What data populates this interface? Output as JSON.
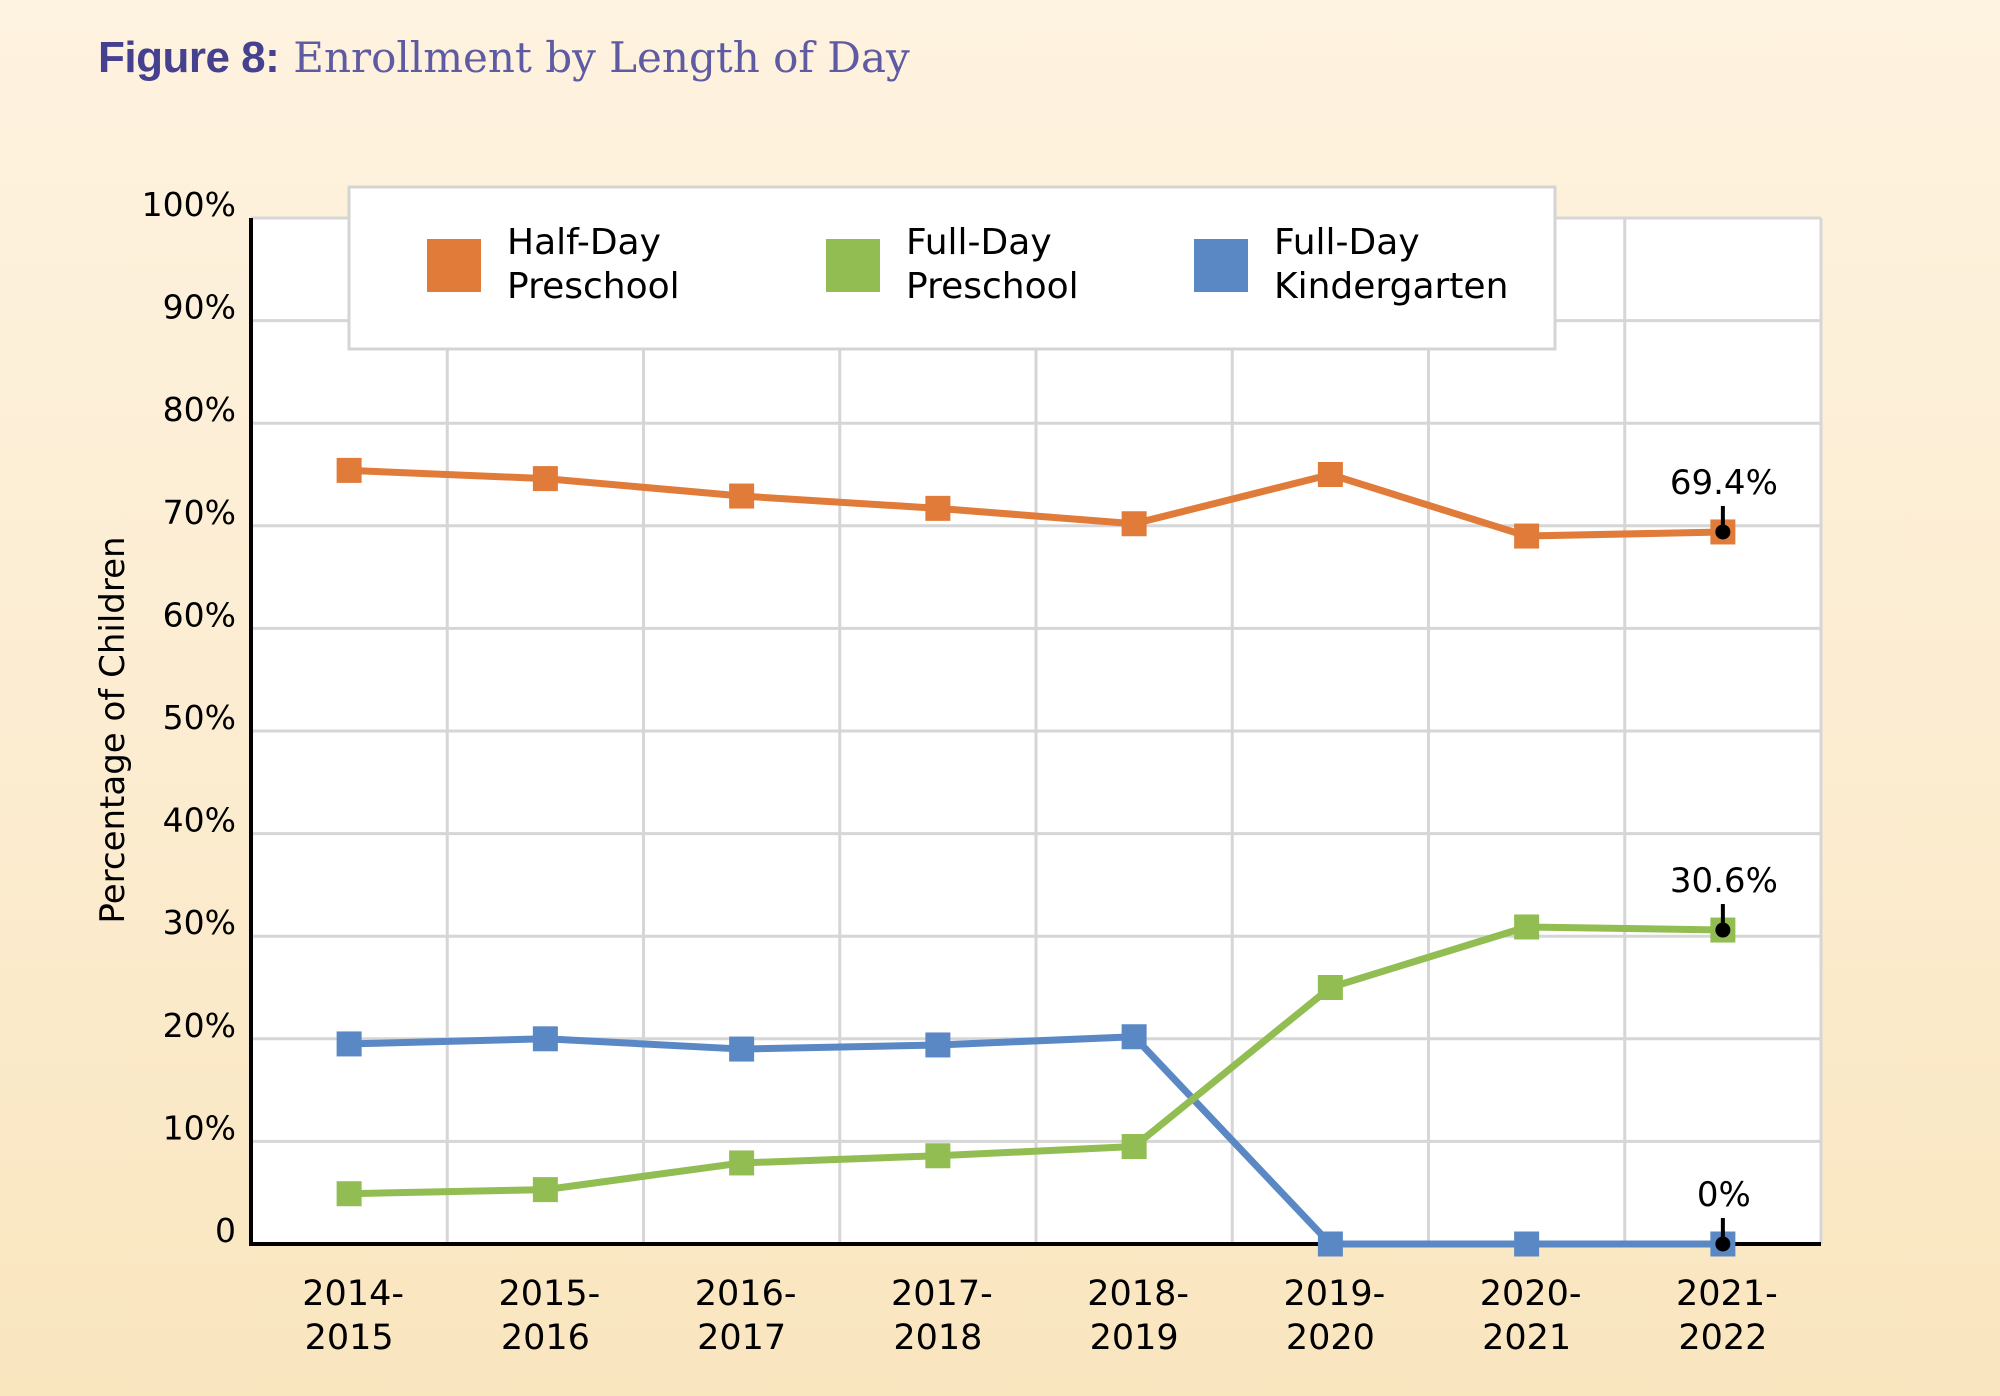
{
  "title": {
    "prefix": "Figure 8:",
    "text": "Enrollment by Length of Day"
  },
  "chart_data": {
    "type": "line",
    "title": "Figure 8: Enrollment by Length of Day",
    "xlabel": "",
    "ylabel": "Percentage of Children",
    "ylim": [
      0,
      100
    ],
    "y_ticks": [
      {
        "value": 0,
        "label": "0"
      },
      {
        "value": 10,
        "label": "10%"
      },
      {
        "value": 20,
        "label": "20%"
      },
      {
        "value": 30,
        "label": "30%"
      },
      {
        "value": 40,
        "label": "40%"
      },
      {
        "value": 50,
        "label": "50%"
      },
      {
        "value": 60,
        "label": "60%"
      },
      {
        "value": 70,
        "label": "70%"
      },
      {
        "value": 80,
        "label": "80%"
      },
      {
        "value": 90,
        "label": "90%"
      },
      {
        "value": 100,
        "label": "100%"
      }
    ],
    "categories": [
      [
        "2014-",
        "2015"
      ],
      [
        "2015-",
        "2016"
      ],
      [
        "2016-",
        "2017"
      ],
      [
        "2017-",
        "2018"
      ],
      [
        "2018-",
        "2019"
      ],
      [
        "2019-",
        "2020"
      ],
      [
        "2020-",
        "2021"
      ],
      [
        "2021-",
        "2022"
      ]
    ],
    "grid": true,
    "legend_position": "top",
    "series": [
      {
        "name": "Half-Day Preschool",
        "legend_lines": [
          "Half-Day",
          "Preschool"
        ],
        "color": "#e07b39",
        "values": [
          75.4,
          74.6,
          72.9,
          71.7,
          70.2,
          75.0,
          69.0,
          69.4
        ],
        "annotation": {
          "index": 7,
          "label": "69.4%"
        }
      },
      {
        "name": "Full-Day Preschool",
        "legend_lines": [
          "Full-Day",
          "Preschool"
        ],
        "color": "#92bd52",
        "values": [
          4.9,
          5.3,
          7.9,
          8.6,
          9.5,
          25.0,
          30.9,
          30.6
        ],
        "annotation": {
          "index": 7,
          "label": "30.6%"
        }
      },
      {
        "name": "Full-Day Kindergarten",
        "legend_lines": [
          "Full-Day",
          "Kindergarten"
        ],
        "color": "#5a88c4",
        "values": [
          19.5,
          20.0,
          19.0,
          19.4,
          20.2,
          0,
          0,
          0
        ],
        "annotation": {
          "index": 7,
          "label": "0%"
        }
      }
    ]
  }
}
